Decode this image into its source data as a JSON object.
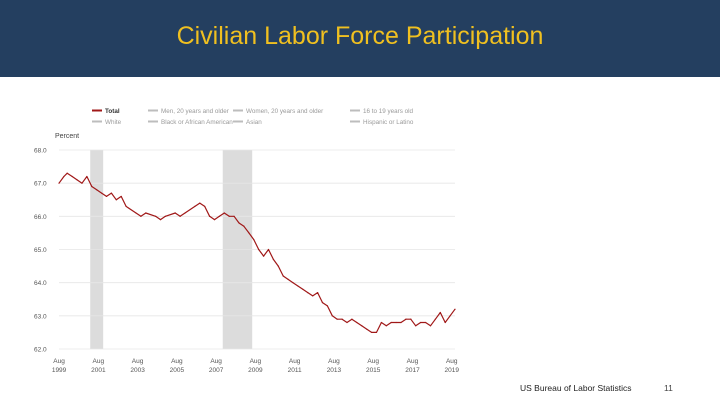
{
  "slide": {
    "title": "Civilian Labor Force Participation",
    "source": "US Bureau of Labor Statistics",
    "page_number": "11",
    "title_color": "#f0c020",
    "header_color": "#243f60"
  },
  "chart_data": {
    "type": "line",
    "ylabel": "Percent",
    "ylim": [
      62.0,
      68.0
    ],
    "y_ticks": [
      "68.0",
      "67.0",
      "66.0",
      "65.0",
      "64.0",
      "63.0",
      "62.0"
    ],
    "x_ticks": [
      {
        "month": "Aug",
        "year": "1999"
      },
      {
        "month": "Aug",
        "year": "2001"
      },
      {
        "month": "Aug",
        "year": "2003"
      },
      {
        "month": "Aug",
        "year": "2005"
      },
      {
        "month": "Aug",
        "year": "2007"
      },
      {
        "month": "Aug",
        "year": "2009"
      },
      {
        "month": "Aug",
        "year": "2011"
      },
      {
        "month": "Aug",
        "year": "2013"
      },
      {
        "month": "Aug",
        "year": "2015"
      },
      {
        "month": "Aug",
        "year": "2017"
      },
      {
        "month": "Aug",
        "year": "2019"
      }
    ],
    "xlim": [
      1999.58,
      2019.75
    ],
    "recessions": [
      [
        2001.17,
        2001.83
      ],
      [
        2007.92,
        2009.42
      ]
    ],
    "legend": [
      {
        "label": "Total",
        "color": "#a01818",
        "active": true
      },
      {
        "label": "Men, 20 years and older",
        "color": "#bdbdbd",
        "active": false
      },
      {
        "label": "Women, 20 years and older",
        "color": "#bdbdbd",
        "active": false
      },
      {
        "label": "16 to 19 years old",
        "color": "#bdbdbd",
        "active": false
      },
      {
        "label": "White",
        "color": "#bdbdbd",
        "active": false
      },
      {
        "label": "Black or African American",
        "color": "#bdbdbd",
        "active": false
      },
      {
        "label": "Asian",
        "color": "#bdbdbd",
        "active": false
      },
      {
        "label": "Hispanic or Latino",
        "color": "#bdbdbd",
        "active": false
      }
    ],
    "legend_placement": "top",
    "grid": true,
    "series": [
      {
        "name": "Total",
        "color": "#a01818",
        "points": [
          [
            1999.58,
            67.0
          ],
          [
            1999.83,
            67.2
          ],
          [
            2000.0,
            67.3
          ],
          [
            2000.25,
            67.2
          ],
          [
            2000.5,
            67.1
          ],
          [
            2000.75,
            67.0
          ],
          [
            2001.0,
            67.2
          ],
          [
            2001.25,
            66.9
          ],
          [
            2001.5,
            66.8
          ],
          [
            2001.75,
            66.7
          ],
          [
            2002.0,
            66.6
          ],
          [
            2002.25,
            66.7
          ],
          [
            2002.5,
            66.5
          ],
          [
            2002.75,
            66.6
          ],
          [
            2003.0,
            66.3
          ],
          [
            2003.5,
            66.1
          ],
          [
            2003.75,
            66.0
          ],
          [
            2004.0,
            66.1
          ],
          [
            2004.5,
            66.0
          ],
          [
            2004.75,
            65.9
          ],
          [
            2005.0,
            66.0
          ],
          [
            2005.5,
            66.1
          ],
          [
            2005.75,
            66.0
          ],
          [
            2006.0,
            66.1
          ],
          [
            2006.5,
            66.3
          ],
          [
            2006.75,
            66.4
          ],
          [
            2007.0,
            66.3
          ],
          [
            2007.25,
            66.0
          ],
          [
            2007.5,
            65.9
          ],
          [
            2007.75,
            66.0
          ],
          [
            2008.0,
            66.1
          ],
          [
            2008.25,
            66.0
          ],
          [
            2008.5,
            66.0
          ],
          [
            2008.75,
            65.8
          ],
          [
            2009.0,
            65.7
          ],
          [
            2009.25,
            65.5
          ],
          [
            2009.5,
            65.3
          ],
          [
            2009.75,
            65.0
          ],
          [
            2010.0,
            64.8
          ],
          [
            2010.25,
            65.0
          ],
          [
            2010.5,
            64.7
          ],
          [
            2010.75,
            64.5
          ],
          [
            2011.0,
            64.2
          ],
          [
            2011.25,
            64.1
          ],
          [
            2011.5,
            64.0
          ],
          [
            2011.75,
            63.9
          ],
          [
            2012.0,
            63.8
          ],
          [
            2012.25,
            63.7
          ],
          [
            2012.5,
            63.6
          ],
          [
            2012.75,
            63.7
          ],
          [
            2013.0,
            63.4
          ],
          [
            2013.25,
            63.3
          ],
          [
            2013.5,
            63.0
          ],
          [
            2013.75,
            62.9
          ],
          [
            2014.0,
            62.9
          ],
          [
            2014.25,
            62.8
          ],
          [
            2014.5,
            62.9
          ],
          [
            2014.75,
            62.8
          ],
          [
            2015.0,
            62.7
          ],
          [
            2015.25,
            62.6
          ],
          [
            2015.5,
            62.5
          ],
          [
            2015.75,
            62.5
          ],
          [
            2016.0,
            62.8
          ],
          [
            2016.25,
            62.7
          ],
          [
            2016.5,
            62.8
          ],
          [
            2016.75,
            62.8
          ],
          [
            2017.0,
            62.8
          ],
          [
            2017.25,
            62.9
          ],
          [
            2017.5,
            62.9
          ],
          [
            2017.75,
            62.7
          ],
          [
            2018.0,
            62.8
          ],
          [
            2018.25,
            62.8
          ],
          [
            2018.5,
            62.7
          ],
          [
            2018.75,
            62.9
          ],
          [
            2019.0,
            63.1
          ],
          [
            2019.25,
            62.8
          ],
          [
            2019.5,
            63.0
          ],
          [
            2019.75,
            63.2
          ]
        ]
      }
    ]
  }
}
